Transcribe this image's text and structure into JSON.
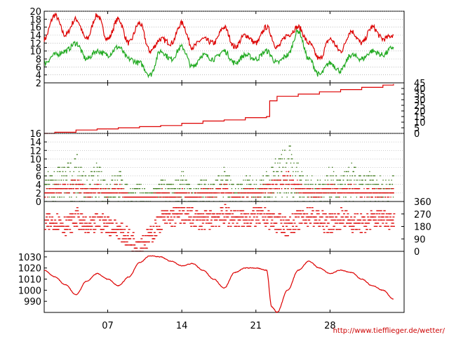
{
  "credit": "http://www.tiefflieger.de/wetter/",
  "colors": {
    "red": "#dd0000",
    "green": "#22aa22",
    "dark_green": "#3d7a1a",
    "grid": "#999999"
  },
  "chart_data": [
    {
      "type": "line",
      "ylim": [
        2,
        20
      ],
      "yticks": [
        "20",
        "18",
        "16",
        "14",
        "12",
        "10",
        "8",
        "6",
        "4",
        "2"
      ],
      "series": [
        {
          "color": "red",
          "x": [
            0,
            1,
            2,
            3,
            4,
            5,
            6,
            7,
            8,
            9,
            10,
            11,
            12,
            13,
            14,
            15,
            16,
            17,
            18,
            19,
            20,
            21,
            22,
            23,
            24,
            25,
            26,
            27,
            28,
            29,
            30,
            31,
            32,
            33
          ],
          "values": [
            13,
            19,
            14,
            18,
            13,
            19,
            13,
            18,
            12,
            17,
            10,
            13,
            12,
            17,
            11,
            13,
            12,
            16,
            11,
            14,
            12,
            16,
            11,
            14,
            16,
            12,
            8,
            13,
            10,
            15,
            12,
            16,
            13,
            14
          ]
        },
        {
          "color": "green",
          "x": [
            0,
            1,
            2,
            3,
            4,
            5,
            6,
            7,
            8,
            9,
            10,
            11,
            12,
            13,
            14,
            15,
            16,
            17,
            18,
            19,
            20,
            21,
            22,
            23,
            24,
            25,
            26,
            27,
            28,
            29,
            30,
            31,
            32,
            33
          ],
          "values": [
            7,
            9,
            10,
            12,
            8,
            10,
            9,
            11,
            8,
            7,
            4,
            10,
            8,
            11,
            6,
            9,
            8,
            10,
            7,
            9,
            8,
            10,
            7,
            9,
            15,
            8,
            4,
            7,
            5,
            9,
            8,
            10,
            9,
            11
          ]
        }
      ]
    },
    {
      "type": "line",
      "ylim": [
        0,
        45
      ],
      "yticks": [
        "45",
        "40",
        "35",
        "30",
        "25",
        "20",
        "15",
        "10",
        "5",
        "0"
      ],
      "series": [
        {
          "color": "red",
          "x": [
            0,
            1,
            3,
            5,
            7,
            9,
            11,
            13,
            15,
            17,
            19,
            21,
            21.3,
            22,
            24,
            26,
            28,
            30,
            32,
            33
          ],
          "values": [
            0,
            1,
            3,
            4,
            5,
            6,
            7,
            9,
            11,
            12,
            14,
            15,
            29,
            33,
            35,
            37,
            39,
            41,
            43,
            44
          ]
        }
      ]
    },
    {
      "type": "scatter",
      "ylim": [
        0,
        16
      ],
      "yticks": [
        "16",
        "14",
        "12",
        "10",
        "8",
        "6",
        "4",
        "2",
        "0"
      ],
      "series": [
        {
          "color": "green",
          "name": "",
          "x": [
            0,
            1,
            2,
            3,
            4,
            5,
            6,
            7,
            8,
            9,
            10,
            11,
            12,
            13,
            14,
            15,
            16,
            17,
            18,
            19,
            20,
            21,
            22,
            23,
            24,
            25,
            26,
            27,
            28,
            29,
            30,
            31,
            32,
            33
          ],
          "values": [
            6,
            8,
            9,
            11,
            6,
            9,
            5,
            8,
            3,
            4,
            2,
            6,
            4,
            7,
            3,
            6,
            5,
            8,
            4,
            6,
            5,
            7,
            11,
            14,
            9,
            6,
            5,
            8,
            6,
            9,
            6,
            7,
            5,
            6
          ]
        },
        {
          "color": "red",
          "name": "",
          "x": [
            0,
            1,
            2,
            3,
            4,
            5,
            6,
            7,
            8,
            9,
            10,
            11,
            12,
            13,
            14,
            15,
            16,
            17,
            18,
            19,
            20,
            21,
            22,
            23,
            24,
            25,
            26,
            27,
            28,
            29,
            30,
            31,
            32,
            33
          ],
          "values": [
            2,
            3,
            3,
            4,
            2,
            3,
            2,
            3,
            1,
            1,
            1,
            2,
            1,
            2,
            1,
            2,
            2,
            3,
            1,
            2,
            2,
            3,
            4,
            5,
            3,
            2,
            2,
            3,
            2,
            3,
            2,
            2,
            2,
            2
          ]
        }
      ]
    },
    {
      "type": "scatter",
      "ylim": [
        0,
        360
      ],
      "yticks": [
        "360",
        "270",
        "180",
        "90",
        "0"
      ],
      "series": [
        {
          "color": "red",
          "x": [
            0,
            1,
            2,
            3,
            4,
            5,
            6,
            7,
            8,
            9,
            10,
            11,
            12,
            13,
            14,
            15,
            16,
            17,
            18,
            19,
            20,
            21,
            22,
            23,
            24,
            25,
            26,
            27,
            28,
            29,
            30,
            31,
            32,
            33
          ],
          "values": [
            200,
            220,
            180,
            240,
            160,
            210,
            190,
            150,
            80,
            60,
            110,
            230,
            250,
            260,
            240,
            220,
            250,
            260,
            240,
            230,
            250,
            240,
            200,
            180,
            230,
            260,
            220,
            200,
            240,
            210,
            190,
            230,
            250,
            220
          ]
        }
      ]
    },
    {
      "type": "line",
      "ylim": [
        980,
        1035
      ],
      "yticks": [
        "1030",
        "1020",
        "1010",
        "1000",
        "990"
      ],
      "series": [
        {
          "color": "red",
          "x": [
            0,
            1,
            2,
            3,
            4,
            5,
            6,
            7,
            8,
            9,
            10,
            11,
            12,
            13,
            14,
            15,
            16,
            17,
            18,
            19,
            20,
            21,
            21.5,
            22,
            23,
            24,
            25,
            26,
            27,
            28,
            29,
            30,
            31,
            32,
            33
          ],
          "values": [
            1018,
            1012,
            1005,
            996,
            1008,
            1015,
            1010,
            1004,
            1012,
            1025,
            1031,
            1030,
            1026,
            1022,
            1024,
            1018,
            1010,
            1002,
            1016,
            1020,
            1020,
            1018,
            985,
            980,
            1000,
            1018,
            1026,
            1020,
            1015,
            1018,
            1016,
            1010,
            1004,
            1000,
            992
          ]
        }
      ]
    }
  ],
  "x_axis": {
    "xlim": [
      0,
      34
    ],
    "ticks": [
      {
        "x": 6,
        "label": "07"
      },
      {
        "x": 13,
        "label": "14"
      },
      {
        "x": 20,
        "label": "21"
      },
      {
        "x": 27,
        "label": "28"
      }
    ]
  }
}
